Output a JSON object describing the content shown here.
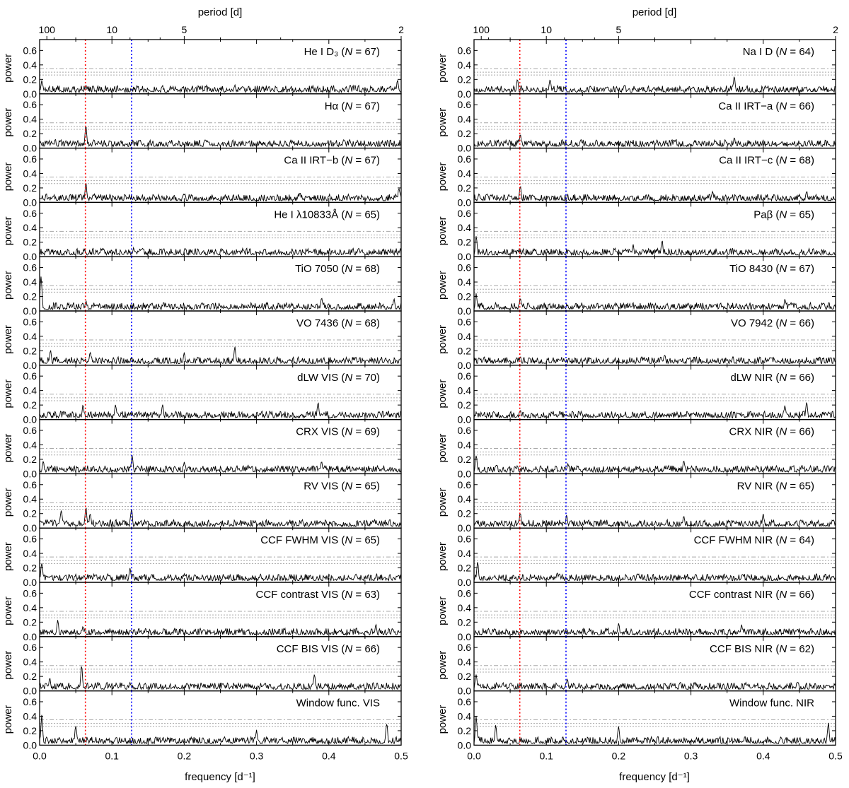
{
  "figure": {
    "top_axis_label": "period [d]",
    "bottom_axis_label": "frequency [d⁻¹]",
    "y_axis_label": "power"
  },
  "chart_data": {
    "type": "line",
    "xlim": [
      0.0,
      0.5
    ],
    "ylim": [
      0.0,
      0.75
    ],
    "x_ticks": [
      "0.0",
      "0.1",
      "0.2",
      "0.3",
      "0.4",
      "0.5"
    ],
    "x_tick_values": [
      0.0,
      0.1,
      0.2,
      0.3,
      0.4,
      0.5
    ],
    "y_ticks": [
      "0.0",
      "0.2",
      "0.4",
      "0.6"
    ],
    "y_tick_values": [
      0.0,
      0.2,
      0.4,
      0.6
    ],
    "period_ticks": [
      "100",
      "10",
      "5",
      "2"
    ],
    "period_tick_values": [
      100,
      10,
      5,
      2
    ],
    "reference_lines": [
      {
        "frequency": 0.0633,
        "color": "#ff0000",
        "style": "dotted"
      },
      {
        "frequency": 0.1272,
        "color": "#0000ff",
        "style": "dotted"
      }
    ],
    "fap_levels": [
      0.35,
      0.3,
      0.26
    ],
    "grid": false,
    "columns": [
      {
        "panels": [
          {
            "label": "He I D₃ (N = 67)",
            "peaks": [
              [
                0.003,
                0.2
              ],
              [
                0.064,
                0.13
              ],
              [
                0.27,
                0.13
              ],
              [
                0.495,
                0.2
              ]
            ]
          },
          {
            "label": "Hα (N = 67)",
            "peaks": [
              [
                0.064,
                0.32
              ],
              [
                0.01,
                0.12
              ],
              [
                0.18,
                0.1
              ]
            ]
          },
          {
            "label": "Ca II IRT−b (N = 67)",
            "peaks": [
              [
                0.064,
                0.29
              ],
              [
                0.36,
                0.15
              ],
              [
                0.497,
                0.22
              ]
            ]
          },
          {
            "label": "He I λ10833Å (N = 65)",
            "peaks": [
              [
                0.13,
                0.13
              ],
              [
                0.01,
                0.12
              ]
            ]
          },
          {
            "label": "TiO 7050 (N = 68)",
            "peaks": [
              [
                0.002,
                0.52
              ],
              [
                0.39,
                0.2
              ],
              [
                0.49,
                0.18
              ],
              [
                0.064,
                0.15
              ]
            ]
          },
          {
            "label": "VO 7436 (N = 68)",
            "peaks": [
              [
                0.27,
                0.27
              ],
              [
                0.07,
                0.2
              ],
              [
                0.015,
                0.22
              ],
              [
                0.2,
                0.18
              ]
            ]
          },
          {
            "label": "dLW VIS (N = 70)",
            "peaks": [
              [
                0.06,
                0.22
              ],
              [
                0.17,
                0.23
              ],
              [
                0.105,
                0.22
              ],
              [
                0.385,
                0.25
              ]
            ]
          },
          {
            "label": "CRX VIS (N = 69)",
            "peaks": [
              [
                0.128,
                0.26
              ],
              [
                0.005,
                0.18
              ],
              [
                0.2,
                0.17
              ],
              [
                0.39,
                0.18
              ]
            ]
          },
          {
            "label": "RV VIS (N = 65)",
            "peaks": [
              [
                0.064,
                0.31
              ],
              [
                0.03,
                0.28
              ],
              [
                0.127,
                0.3
              ],
              [
                0.07,
                0.22
              ]
            ]
          },
          {
            "label": "CCF FWHM VIS (N = 65)",
            "peaks": [
              [
                0.003,
                0.3
              ],
              [
                0.125,
                0.22
              ],
              [
                0.2,
                0.12
              ]
            ]
          },
          {
            "label": "CCF contrast VIS (N = 63)",
            "peaks": [
              [
                0.025,
                0.25
              ],
              [
                0.06,
                0.15
              ],
              [
                0.465,
                0.18
              ]
            ]
          },
          {
            "label": "CCF BIS VIS (N = 66)",
            "peaks": [
              [
                0.058,
                0.38
              ],
              [
                0.014,
                0.18
              ],
              [
                0.125,
                0.12
              ],
              [
                0.38,
                0.25
              ]
            ]
          },
          {
            "label": "Window func. VIS",
            "peaks": [
              [
                0.003,
                0.45
              ],
              [
                0.05,
                0.3
              ],
              [
                0.48,
                0.33
              ],
              [
                0.3,
                0.22
              ]
            ]
          }
        ]
      },
      {
        "panels": [
          {
            "label": "Na I D (N = 64)",
            "peaks": [
              [
                0.06,
                0.22
              ],
              [
                0.36,
                0.26
              ],
              [
                0.105,
                0.22
              ]
            ]
          },
          {
            "label": "Ca II IRT−a (N = 66)",
            "peaks": [
              [
                0.064,
                0.2
              ],
              [
                0.36,
                0.15
              ]
            ]
          },
          {
            "label": "Ca II IRT−c (N = 68)",
            "peaks": [
              [
                0.064,
                0.25
              ],
              [
                0.33,
                0.17
              ],
              [
                0.46,
                0.17
              ]
            ]
          },
          {
            "label": "Paβ (N = 65)",
            "peaks": [
              [
                0.003,
                0.3
              ],
              [
                0.26,
                0.25
              ],
              [
                0.22,
                0.18
              ]
            ]
          },
          {
            "label": "TiO 8430 (N = 67)",
            "peaks": [
              [
                0.003,
                0.25
              ],
              [
                0.064,
                0.2
              ],
              [
                0.43,
                0.17
              ]
            ]
          },
          {
            "label": "VO 7942 (N = 66)",
            "peaks": [
              [
                0.264,
                0.15
              ],
              [
                0.064,
                0.13
              ],
              [
                0.41,
                0.12
              ]
            ]
          },
          {
            "label": "dLW NIR (N = 66)",
            "peaks": [
              [
                0.46,
                0.25
              ],
              [
                0.43,
                0.2
              ],
              [
                0.064,
                0.14
              ]
            ]
          },
          {
            "label": "CRX NIR (N = 66)",
            "peaks": [
              [
                0.003,
                0.27
              ],
              [
                0.29,
                0.21
              ],
              [
                0.13,
                0.15
              ]
            ]
          },
          {
            "label": "RV NIR (N = 65)",
            "peaks": [
              [
                0.064,
                0.24
              ],
              [
                0.128,
                0.2
              ],
              [
                0.29,
                0.18
              ],
              [
                0.4,
                0.2
              ]
            ]
          },
          {
            "label": "CCF FWHM NIR (N = 64)",
            "peaks": [
              [
                0.005,
                0.29
              ],
              [
                0.115,
                0.15
              ],
              [
                0.33,
                0.12
              ]
            ]
          },
          {
            "label": "CCF contrast NIR (N = 66)",
            "peaks": [
              [
                0.2,
                0.19
              ],
              [
                0.37,
                0.18
              ],
              [
                0.02,
                0.12
              ]
            ]
          },
          {
            "label": "CCF BIS NIR (N = 62)",
            "peaks": [
              [
                0.003,
                0.25
              ],
              [
                0.129,
                0.18
              ],
              [
                0.05,
                0.12
              ]
            ]
          },
          {
            "label": "Window func. NIR",
            "peaks": [
              [
                0.003,
                0.42
              ],
              [
                0.49,
                0.33
              ],
              [
                0.2,
                0.28
              ],
              [
                0.03,
                0.28
              ]
            ]
          }
        ]
      }
    ]
  }
}
